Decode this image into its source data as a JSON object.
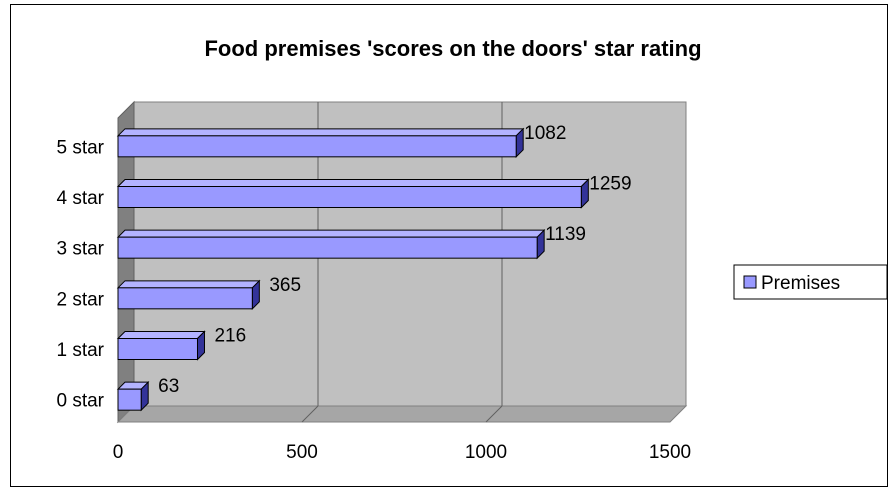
{
  "chart_data": {
    "type": "bar",
    "orientation": "horizontal",
    "style": "3d",
    "title": "Food premises 'scores on the doors' star rating",
    "categories": [
      "0 star",
      "1 star",
      "2 star",
      "3 star",
      "4 star",
      "5 star"
    ],
    "series": [
      {
        "name": "Premises",
        "values": [
          63,
          216,
          365,
          1139,
          1259,
          1082
        ],
        "color": "#9999ff"
      }
    ],
    "data_labels": [
      "63",
      "216",
      "365",
      "1139",
      "1259",
      "1082"
    ],
    "xlim": [
      0,
      1500
    ],
    "x_ticks": [
      0,
      500,
      1000,
      1500
    ],
    "x_tick_labels": [
      "0",
      "500",
      "1000",
      "1500"
    ],
    "grid": true,
    "legend_position": "right",
    "colors": {
      "plot_wall": "#c0c0c0",
      "plot_side_wall": "#808080",
      "plot_floor": "#a6a6a6",
      "bar_front": "#9999ff",
      "bar_top": "#b3b3ff",
      "bar_side": "#333399"
    }
  }
}
